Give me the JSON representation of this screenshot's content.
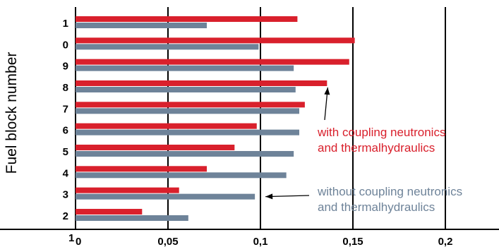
{
  "chart_data": {
    "type": "bar",
    "orientation": "horizontal",
    "title": "",
    "ylabel": "Fuel block number",
    "xlabel": "",
    "xlim": [
      0,
      0.2
    ],
    "xticks": [
      0,
      0.05,
      0.1,
      0.15,
      0.2
    ],
    "xtick_labels": [
      "0",
      "0,05",
      "0,1",
      "0,15",
      "0,2"
    ],
    "x_origin_extra_label": "1",
    "categories": [
      "1",
      "0",
      "9",
      "8",
      "7",
      "6",
      "5",
      "4",
      "3",
      "2"
    ],
    "series": [
      {
        "name": "with coupling neutronics and thermalhydraulics",
        "color": "#d9202c",
        "values": [
          0.12,
          0.151,
          0.148,
          0.136,
          0.124,
          0.098,
          0.086,
          0.071,
          0.056,
          0.036
        ]
      },
      {
        "name": "without coupling neutronics and thermalhydraulics",
        "color": "#6e8399",
        "values": [
          0.071,
          0.099,
          0.118,
          0.119,
          0.121,
          0.121,
          0.118,
          0.114,
          0.097,
          0.061
        ]
      }
    ],
    "grid": {
      "x": true,
      "y": false
    },
    "annotations": [
      {
        "series": 0,
        "lines": [
          "with coupling neutronics",
          "and thermalhydraulics"
        ],
        "color": "#d9202c",
        "arrow_to_category": "8"
      },
      {
        "series": 1,
        "lines": [
          "without coupling neutronics",
          "and thermalhydraulics"
        ],
        "color": "#6e8399",
        "arrow_to_category": "3"
      }
    ]
  }
}
